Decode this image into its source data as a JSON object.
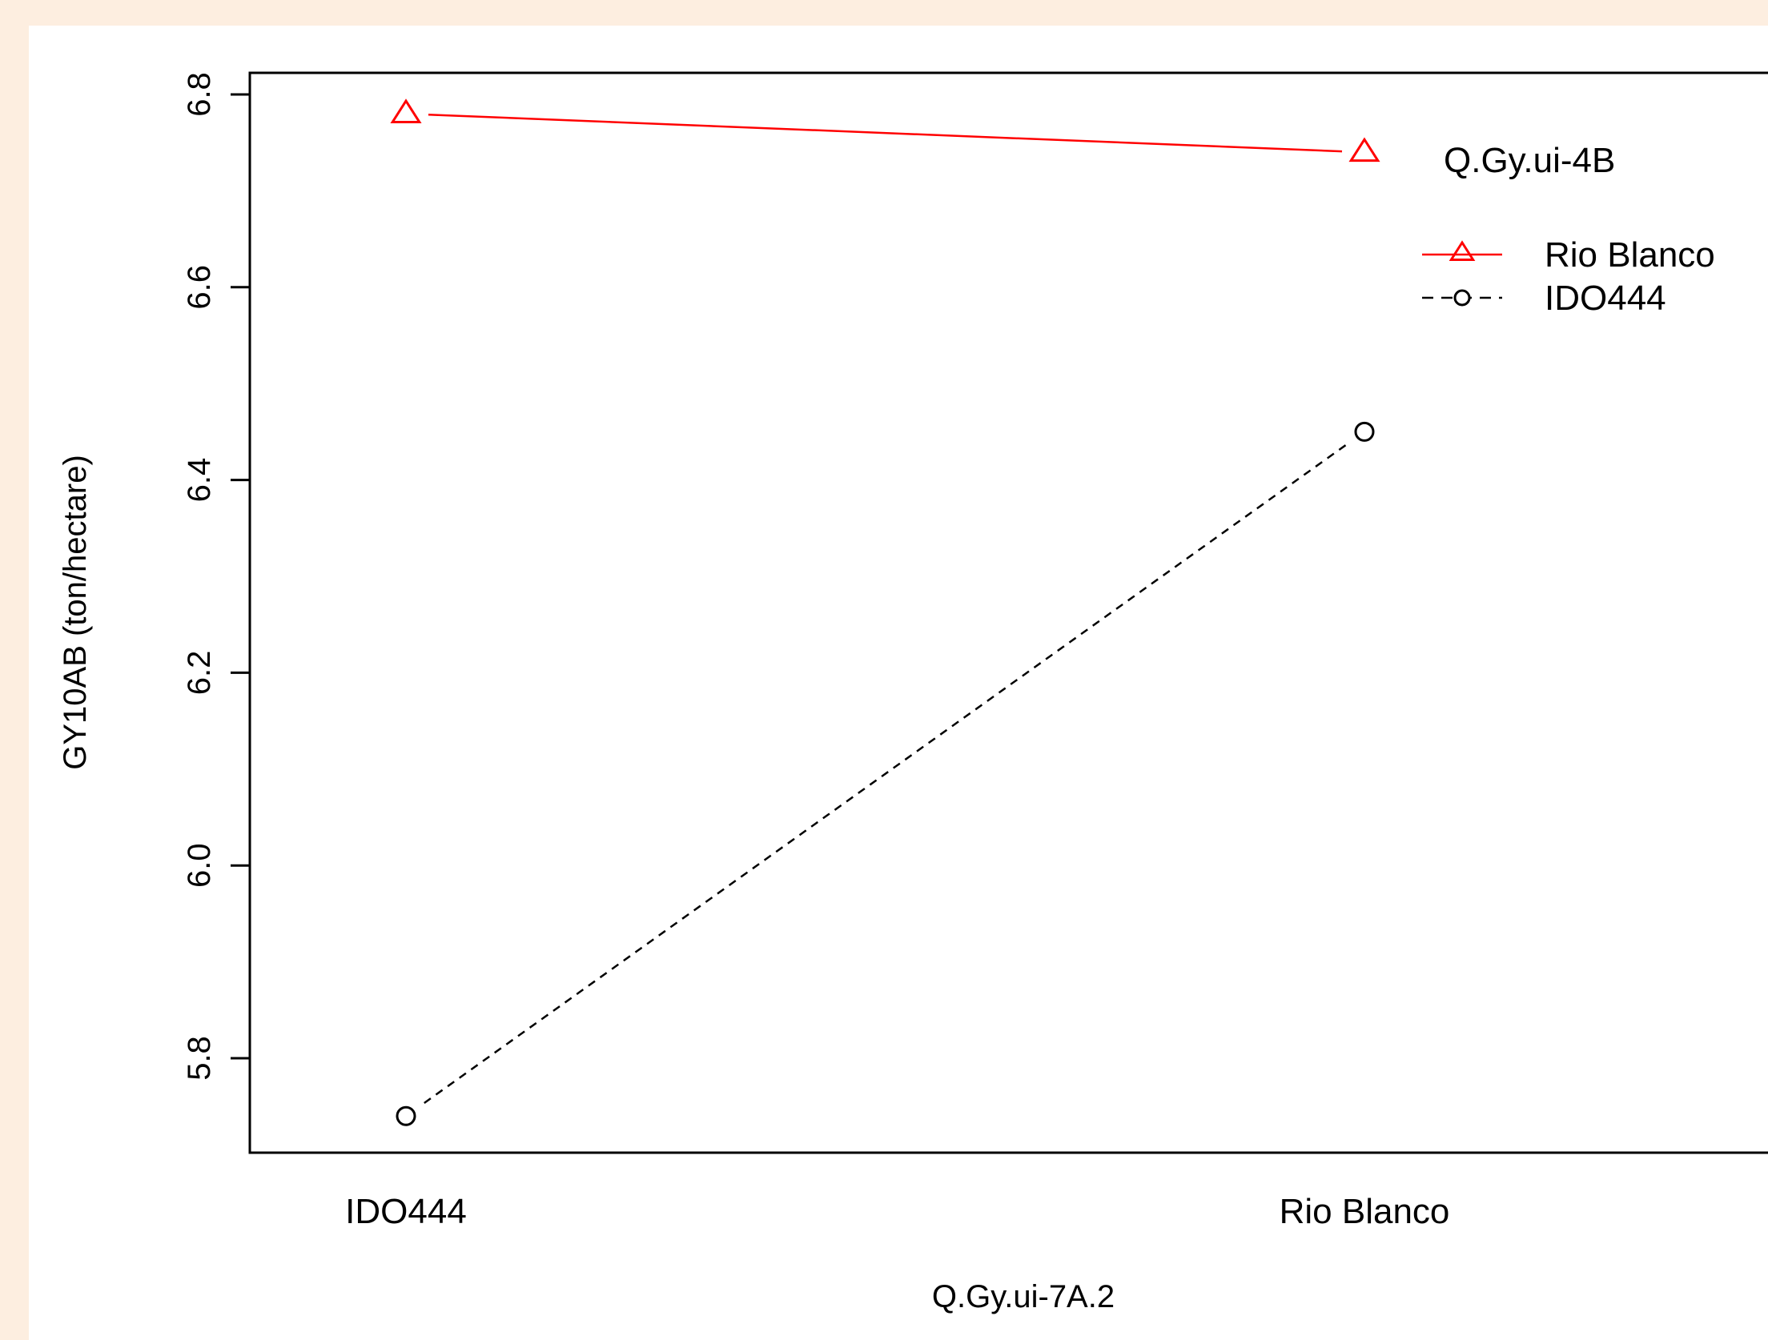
{
  "chart_data": {
    "type": "line",
    "title": "",
    "xlabel": "Q.Gy.ui-7A.2",
    "ylabel": "GY10AB (ton/hectare)",
    "categories": [
      "IDO444",
      "Rio Blanco"
    ],
    "ylim": [
      5.7,
      6.82
    ],
    "yticks": [
      "5.8",
      "6.0",
      "6.2",
      "6.4",
      "6.6",
      "6.8"
    ],
    "legend": {
      "title": "Q.Gy.ui-4B",
      "placement": "top-right"
    },
    "series": [
      {
        "name": "Rio Blanco",
        "values": [
          6.78,
          6.74
        ],
        "color": "#ff0000",
        "marker": "triangle",
        "linestyle": "solid"
      },
      {
        "name": "IDO444",
        "values": [
          5.74,
          6.45
        ],
        "color": "#000000",
        "marker": "circle",
        "linestyle": "dashed"
      }
    ],
    "grid": false
  }
}
